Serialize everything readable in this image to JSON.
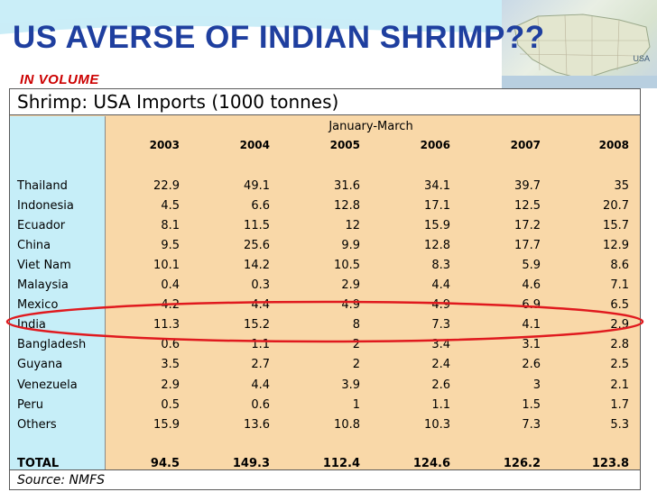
{
  "slide": {
    "title": "US AVERSE OF INDIAN SHRIMP??",
    "subtitle": "IN VOLUME",
    "map_label": "USA"
  },
  "table": {
    "title": "Shrimp: USA Imports (1000 tonnes)",
    "period": "January-March",
    "years": [
      "2003",
      "2004",
      "2005",
      "2006",
      "2007",
      "2008"
    ],
    "rows": [
      {
        "name": "Thailand",
        "values": [
          "22.9",
          "49.1",
          "31.6",
          "34.1",
          "39.7",
          "35"
        ]
      },
      {
        "name": "Indonesia",
        "values": [
          "4.5",
          "6.6",
          "12.8",
          "17.1",
          "12.5",
          "20.7"
        ]
      },
      {
        "name": "Ecuador",
        "values": [
          "8.1",
          "11.5",
          "12",
          "15.9",
          "17.2",
          "15.7"
        ]
      },
      {
        "name": "China",
        "values": [
          "9.5",
          "25.6",
          "9.9",
          "12.8",
          "17.7",
          "12.9"
        ]
      },
      {
        "name": "Viet Nam",
        "values": [
          "10.1",
          "14.2",
          "10.5",
          "8.3",
          "5.9",
          "8.6"
        ]
      },
      {
        "name": "Malaysia",
        "values": [
          "0.4",
          "0.3",
          "2.9",
          "4.4",
          "4.6",
          "7.1"
        ]
      },
      {
        "name": "Mexico",
        "values": [
          "4.2",
          "4.4",
          "4.9",
          "4.9",
          "6.9",
          "6.5"
        ]
      },
      {
        "name": "India",
        "values": [
          "11.3",
          "15.2",
          "8",
          "7.3",
          "4.1",
          "2.9"
        ]
      },
      {
        "name": "Bangladesh",
        "values": [
          "0.6",
          "1.1",
          "2",
          "3.4",
          "3.1",
          "2.8"
        ]
      },
      {
        "name": "Guyana",
        "values": [
          "3.5",
          "2.7",
          "2",
          "2.4",
          "2.6",
          "2.5"
        ]
      },
      {
        "name": "Venezuela",
        "values": [
          "2.9",
          "4.4",
          "3.9",
          "2.6",
          "3",
          "2.1"
        ]
      },
      {
        "name": "Peru",
        "values": [
          "0.5",
          "0.6",
          "1",
          "1.1",
          "1.5",
          "1.7"
        ]
      },
      {
        "name": "Others",
        "values": [
          "15.9",
          "13.6",
          "10.8",
          "10.3",
          "7.3",
          "5.3"
        ]
      }
    ],
    "total": {
      "name": "TOTAL",
      "values": [
        "94.5",
        "149.3",
        "112.4",
        "124.6",
        "126.2",
        "123.8"
      ]
    },
    "source": "Source: NMFS"
  },
  "colors": {
    "title": "#1f3f9f",
    "subtitle": "#cc0000",
    "table_bg": "#f9d8a8",
    "label_col_bg": "#c6eef8",
    "highlight_ellipse": "#e0191e"
  }
}
